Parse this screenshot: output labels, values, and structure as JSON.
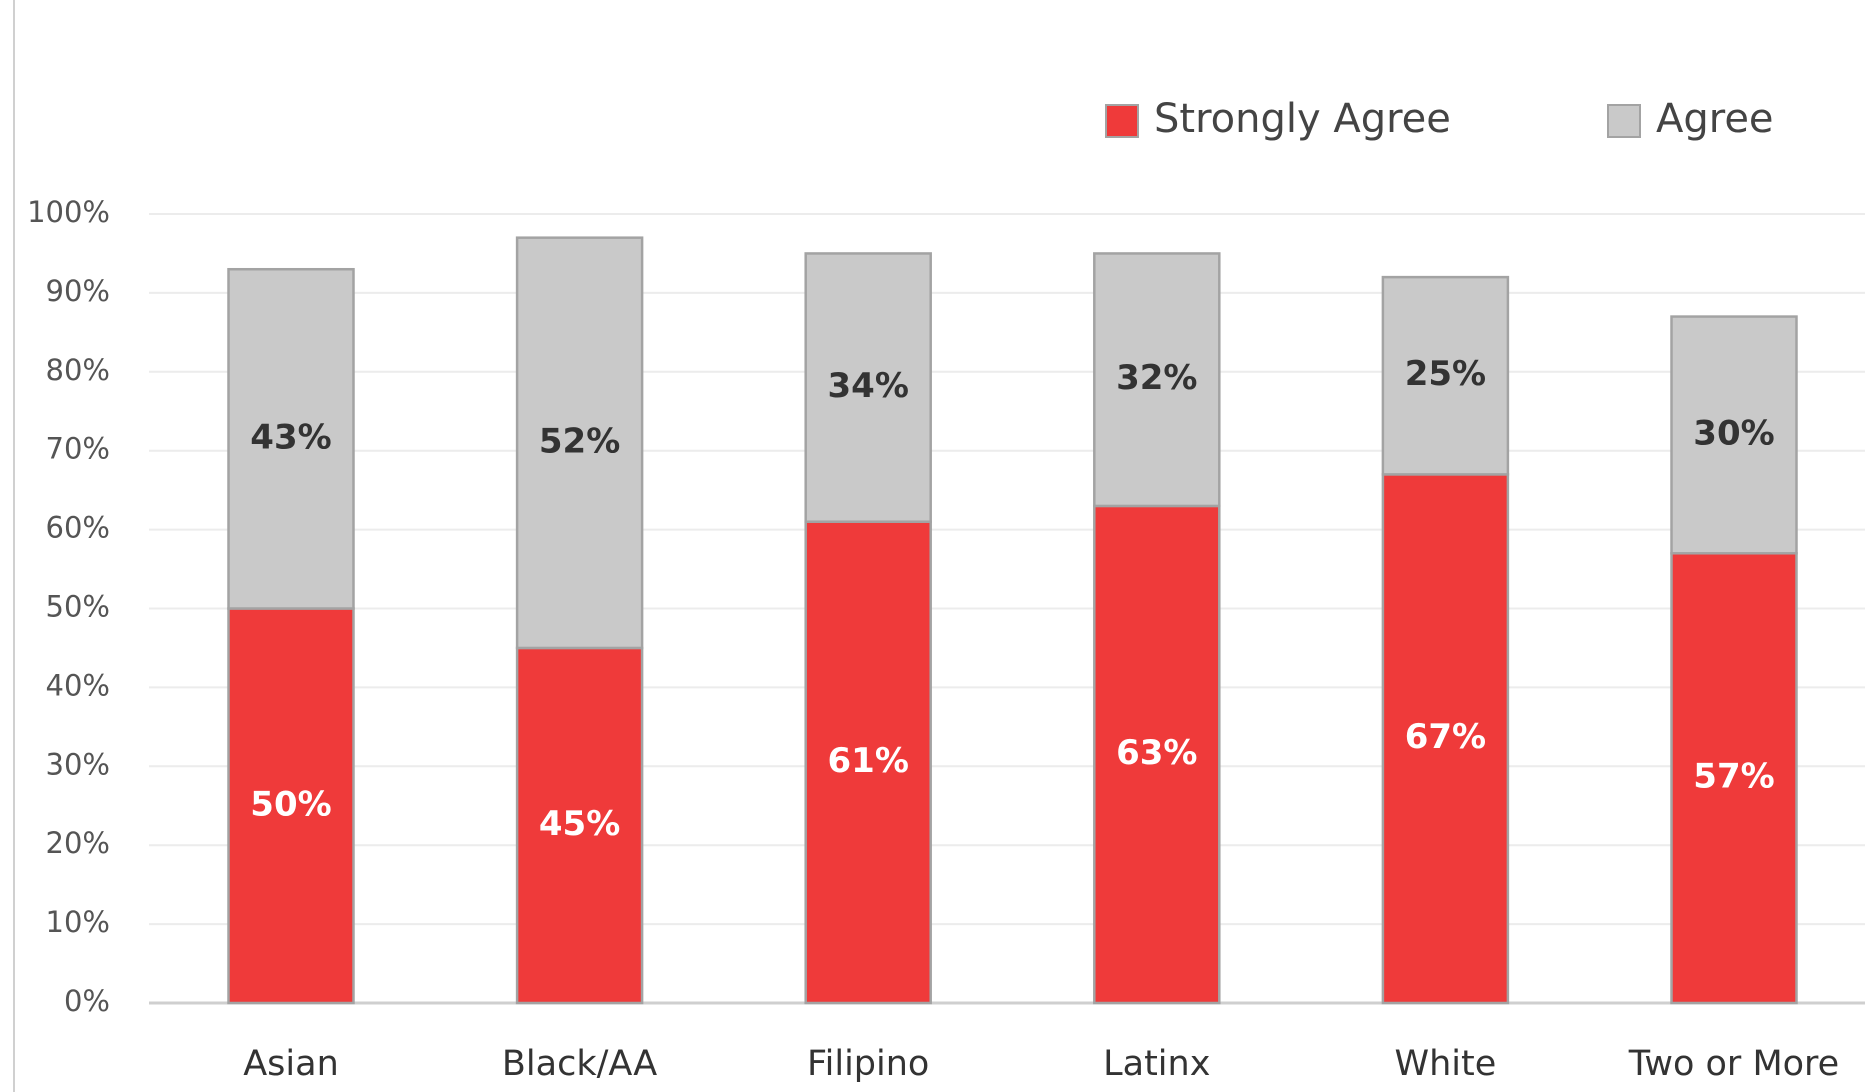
{
  "chart_data": {
    "type": "stacked_bar",
    "categories": [
      "Asian",
      "Black/AA",
      "Filipino",
      "Latinx",
      "White",
      "Two or More"
    ],
    "series": [
      {
        "name": "Strongly Agree",
        "color": "#ef3a3a",
        "values": [
          50,
          45,
          61,
          63,
          67,
          57
        ],
        "value_labels": [
          "50%",
          "45%",
          "61%",
          "63%",
          "67%",
          "57%"
        ]
      },
      {
        "name": "Agree",
        "color": "#c9c9c9",
        "values": [
          43,
          52,
          34,
          32,
          25,
          30
        ],
        "value_labels": [
          "43%",
          "52%",
          "34%",
          "32%",
          "25%",
          "30%"
        ]
      }
    ],
    "ylim": [
      0,
      100
    ],
    "yticks": [
      {
        "value": 0,
        "label": "0%"
      },
      {
        "value": 10,
        "label": "10%"
      },
      {
        "value": 20,
        "label": "20%"
      },
      {
        "value": 30,
        "label": "30%"
      },
      {
        "value": 40,
        "label": "40%"
      },
      {
        "value": 50,
        "label": "50%"
      },
      {
        "value": 60,
        "label": "60%"
      },
      {
        "value": 70,
        "label": "70%"
      },
      {
        "value": 80,
        "label": "80%"
      },
      {
        "value": 90,
        "label": "90%"
      },
      {
        "value": 100,
        "label": "100%"
      }
    ],
    "grid": true,
    "legend": "top-right"
  }
}
